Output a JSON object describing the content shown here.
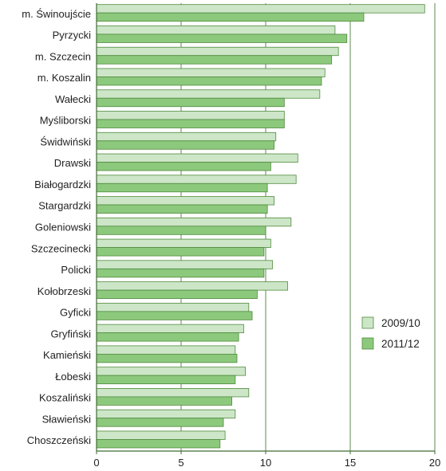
{
  "chart_data": {
    "type": "bar",
    "orientation": "horizontal",
    "categories": [
      "m. Świnoujście",
      "Pyrzycki",
      "m. Szczecin",
      "m. Koszalin",
      "Wałecki",
      "Myśliborski",
      "Świdwiński",
      "Drawski",
      "Białogardzki",
      "Stargardzki",
      "Goleniowski",
      "Szczecinecki",
      "Policki",
      "Kołobrzeski",
      "Gyficki",
      "Gryfiński",
      "Kamieński",
      "Łobeski",
      "Koszaliński",
      "Sławieński",
      "Choszczeński"
    ],
    "series": [
      {
        "name": "2009/10",
        "color": "#cde6c8",
        "values": [
          19.4,
          14.1,
          14.3,
          13.5,
          13.2,
          11.1,
          10.6,
          11.9,
          11.8,
          10.5,
          11.5,
          10.3,
          10.4,
          11.3,
          9.0,
          8.7,
          8.2,
          8.8,
          9.0,
          8.2,
          7.6
        ]
      },
      {
        "name": "2011/12",
        "color": "#8cc97c",
        "values": [
          15.8,
          14.8,
          13.9,
          13.3,
          11.1,
          11.1,
          10.5,
          10.3,
          10.1,
          10.1,
          10.0,
          9.9,
          9.9,
          9.5,
          9.2,
          8.4,
          8.3,
          8.2,
          8.0,
          7.5,
          7.3
        ]
      }
    ],
    "x_ticks": [
      "0",
      "5",
      "10",
      "15",
      "20"
    ],
    "xlim": [
      0,
      20
    ],
    "grid": "vertical",
    "legend_position": "right"
  }
}
